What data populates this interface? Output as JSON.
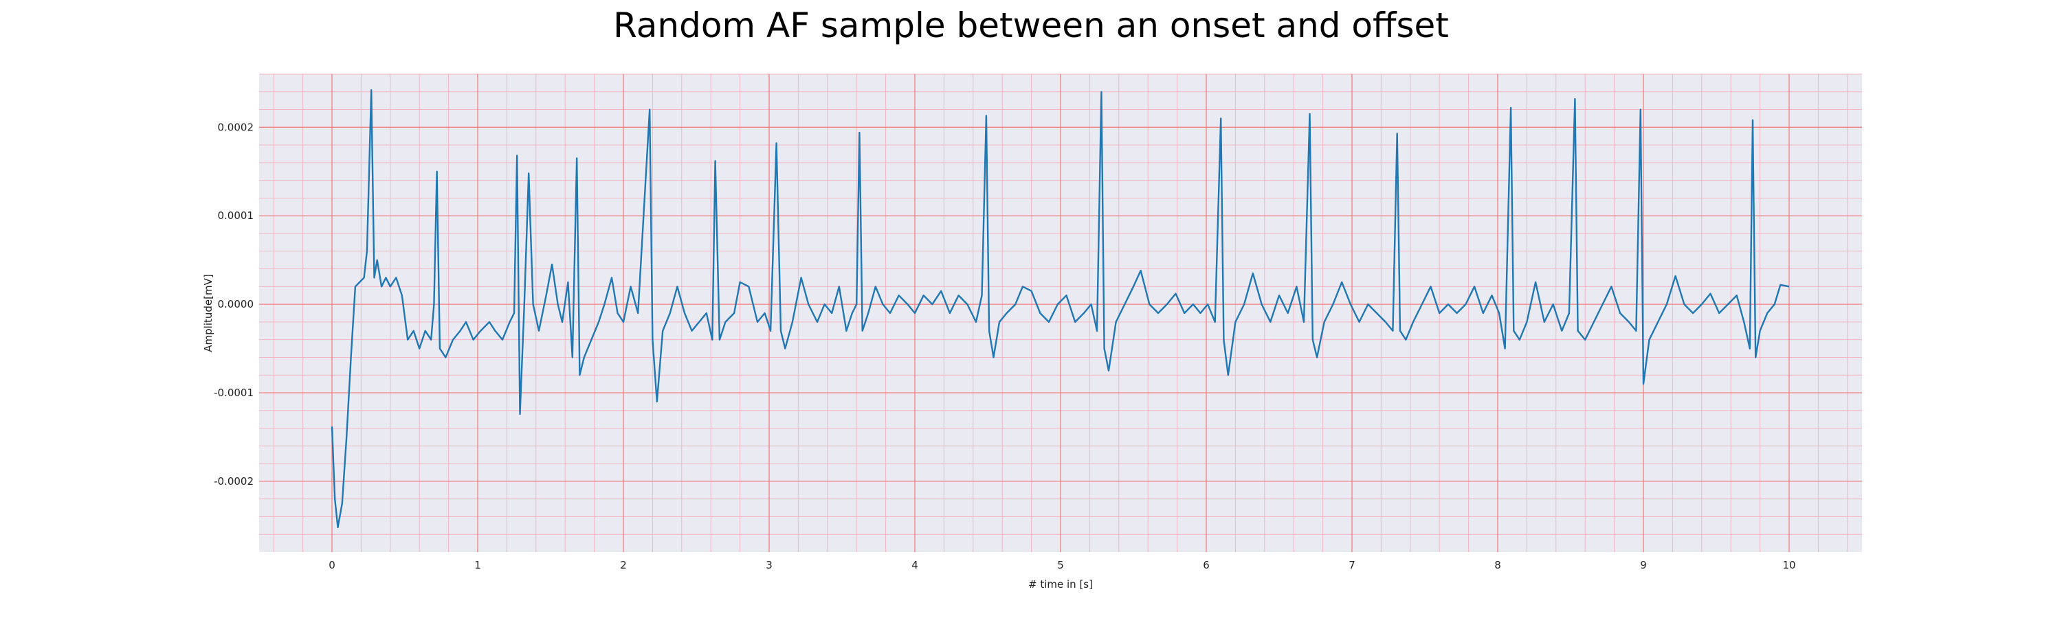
{
  "chart_data": {
    "type": "line",
    "title": "Random AF sample between an onset and offset",
    "xlabel": "# time in [s]",
    "ylabel": "Amplitude[mV]",
    "xlim": [
      -0.5,
      10.5
    ],
    "ylim": [
      -0.00028,
      0.00026
    ],
    "xticks": [
      0,
      1,
      2,
      3,
      4,
      5,
      6,
      7,
      8,
      9,
      10
    ],
    "xtick_labels": [
      "0",
      "1",
      "2",
      "3",
      "4",
      "5",
      "6",
      "7",
      "8",
      "9",
      "10"
    ],
    "yticks": [
      -0.0002,
      -0.0001,
      0.0,
      0.0001,
      0.0002
    ],
    "ytick_labels": [
      "-0.0002",
      "-0.0001",
      "0.0000",
      "0.0001",
      "0.0002"
    ],
    "grid": true,
    "minor_grid": true,
    "colors": {
      "line": "#1f77b4",
      "background": "#eaeaf2",
      "major_grid": "#f08080",
      "minor_grid": "#f4b6c2"
    },
    "series": [
      {
        "points": [
          [
            0.0,
            -0.000138
          ],
          [
            0.02,
            -0.00022
          ],
          [
            0.04,
            -0.000252
          ],
          [
            0.07,
            -0.000225
          ],
          [
            0.1,
            -0.00015
          ],
          [
            0.13,
            -6e-05
          ],
          [
            0.16,
            2e-05
          ],
          [
            0.19,
            2.5e-05
          ],
          [
            0.22,
            3e-05
          ],
          [
            0.24,
            6e-05
          ],
          [
            0.27,
            0.000242
          ],
          [
            0.29,
            3e-05
          ],
          [
            0.31,
            5e-05
          ],
          [
            0.34,
            2e-05
          ],
          [
            0.37,
            3e-05
          ],
          [
            0.4,
            2e-05
          ],
          [
            0.44,
            3e-05
          ],
          [
            0.48,
            1e-05
          ],
          [
            0.52,
            -4e-05
          ],
          [
            0.56,
            -3e-05
          ],
          [
            0.6,
            -5e-05
          ],
          [
            0.64,
            -3e-05
          ],
          [
            0.68,
            -4e-05
          ],
          [
            0.7,
            0.0
          ],
          [
            0.72,
            0.00015
          ],
          [
            0.74,
            -5e-05
          ],
          [
            0.78,
            -6e-05
          ],
          [
            0.83,
            -4e-05
          ],
          [
            0.88,
            -3e-05
          ],
          [
            0.92,
            -2e-05
          ],
          [
            0.97,
            -4e-05
          ],
          [
            1.02,
            -3e-05
          ],
          [
            1.08,
            -2e-05
          ],
          [
            1.12,
            -3e-05
          ],
          [
            1.17,
            -4e-05
          ],
          [
            1.22,
            -2e-05
          ],
          [
            1.25,
            -1e-05
          ],
          [
            1.27,
            0.000168
          ],
          [
            1.29,
            -0.000124
          ],
          [
            1.32,
            0.0
          ],
          [
            1.35,
            0.000148
          ],
          [
            1.38,
            0.0
          ],
          [
            1.42,
            -3e-05
          ],
          [
            1.47,
            1e-05
          ],
          [
            1.51,
            4.5e-05
          ],
          [
            1.55,
            0.0
          ],
          [
            1.58,
            -2e-05
          ],
          [
            1.62,
            2.5e-05
          ],
          [
            1.65,
            -6e-05
          ],
          [
            1.68,
            0.000165
          ],
          [
            1.7,
            -8e-05
          ],
          [
            1.73,
            -6e-05
          ],
          [
            1.78,
            -4e-05
          ],
          [
            1.83,
            -2e-05
          ],
          [
            1.87,
            0.0
          ],
          [
            1.92,
            3e-05
          ],
          [
            1.96,
            -1e-05
          ],
          [
            2.0,
            -2e-05
          ],
          [
            2.05,
            2e-05
          ],
          [
            2.1,
            -1e-05
          ],
          [
            2.18,
            0.00022
          ],
          [
            2.2,
            -4e-05
          ],
          [
            2.23,
            -0.00011
          ],
          [
            2.27,
            -3e-05
          ],
          [
            2.32,
            -1e-05
          ],
          [
            2.37,
            2e-05
          ],
          [
            2.42,
            -1e-05
          ],
          [
            2.47,
            -3e-05
          ],
          [
            2.52,
            -2e-05
          ],
          [
            2.57,
            -1e-05
          ],
          [
            2.61,
            -4e-05
          ],
          [
            2.63,
            0.000162
          ],
          [
            2.66,
            -4e-05
          ],
          [
            2.7,
            -2e-05
          ],
          [
            2.76,
            -1e-05
          ],
          [
            2.8,
            2.5e-05
          ],
          [
            2.86,
            2e-05
          ],
          [
            2.92,
            -2e-05
          ],
          [
            2.97,
            -1e-05
          ],
          [
            3.01,
            -3e-05
          ],
          [
            3.05,
            0.000182
          ],
          [
            3.08,
            -3e-05
          ],
          [
            3.11,
            -5e-05
          ],
          [
            3.16,
            -2e-05
          ],
          [
            3.22,
            3e-05
          ],
          [
            3.27,
            0.0
          ],
          [
            3.33,
            -2e-05
          ],
          [
            3.38,
            0.0
          ],
          [
            3.43,
            -1e-05
          ],
          [
            3.48,
            2e-05
          ],
          [
            3.53,
            -3e-05
          ],
          [
            3.57,
            -1e-05
          ],
          [
            3.6,
            0.0
          ],
          [
            3.62,
            0.000194
          ],
          [
            3.64,
            -3e-05
          ],
          [
            3.68,
            -1e-05
          ],
          [
            3.73,
            2e-05
          ],
          [
            3.78,
            0.0
          ],
          [
            3.83,
            -1e-05
          ],
          [
            3.89,
            1e-05
          ],
          [
            3.95,
            0.0
          ],
          [
            4.0,
            -1e-05
          ],
          [
            4.06,
            1e-05
          ],
          [
            4.12,
            0.0
          ],
          [
            4.18,
            1.5e-05
          ],
          [
            4.24,
            -1e-05
          ],
          [
            4.3,
            1e-05
          ],
          [
            4.36,
            0.0
          ],
          [
            4.42,
            -2e-05
          ],
          [
            4.46,
            1e-05
          ],
          [
            4.49,
            0.000213
          ],
          [
            4.51,
            -3e-05
          ],
          [
            4.54,
            -6e-05
          ],
          [
            4.58,
            -2e-05
          ],
          [
            4.63,
            -1e-05
          ],
          [
            4.69,
            0.0
          ],
          [
            4.74,
            2e-05
          ],
          [
            4.8,
            1.5e-05
          ],
          [
            4.86,
            -1e-05
          ],
          [
            4.92,
            -2e-05
          ],
          [
            4.98,
            0.0
          ],
          [
            5.04,
            1e-05
          ],
          [
            5.1,
            -2e-05
          ],
          [
            5.16,
            -1e-05
          ],
          [
            5.21,
            0.0
          ],
          [
            5.25,
            -3e-05
          ],
          [
            5.28,
            0.00024
          ],
          [
            5.3,
            -5e-05
          ],
          [
            5.33,
            -7.5e-05
          ],
          [
            5.38,
            -2e-05
          ],
          [
            5.44,
            0.0
          ],
          [
            5.5,
            2e-05
          ],
          [
            5.55,
            3.8e-05
          ],
          [
            5.61,
            0.0
          ],
          [
            5.67,
            -1e-05
          ],
          [
            5.73,
            0.0
          ],
          [
            5.79,
            1.2e-05
          ],
          [
            5.85,
            -1e-05
          ],
          [
            5.91,
            0.0
          ],
          [
            5.96,
            -1e-05
          ],
          [
            6.01,
            0.0
          ],
          [
            6.06,
            -2e-05
          ],
          [
            6.1,
            0.00021
          ],
          [
            6.12,
            -4e-05
          ],
          [
            6.15,
            -8e-05
          ],
          [
            6.2,
            -2e-05
          ],
          [
            6.26,
            0.0
          ],
          [
            6.32,
            3.5e-05
          ],
          [
            6.38,
            0.0
          ],
          [
            6.44,
            -2e-05
          ],
          [
            6.5,
            1e-05
          ],
          [
            6.56,
            -1e-05
          ],
          [
            6.62,
            2e-05
          ],
          [
            6.67,
            -2e-05
          ],
          [
            6.71,
            0.000215
          ],
          [
            6.73,
            -4e-05
          ],
          [
            6.76,
            -6e-05
          ],
          [
            6.81,
            -2e-05
          ],
          [
            6.87,
            0.0
          ],
          [
            6.93,
            2.5e-05
          ],
          [
            6.99,
            0.0
          ],
          [
            7.05,
            -2e-05
          ],
          [
            7.11,
            0.0
          ],
          [
            7.17,
            -1e-05
          ],
          [
            7.23,
            -2e-05
          ],
          [
            7.28,
            -3e-05
          ],
          [
            7.31,
            0.000193
          ],
          [
            7.33,
            -3e-05
          ],
          [
            7.37,
            -4e-05
          ],
          [
            7.42,
            -2e-05
          ],
          [
            7.48,
            0.0
          ],
          [
            7.54,
            2e-05
          ],
          [
            7.6,
            -1e-05
          ],
          [
            7.66,
            0.0
          ],
          [
            7.72,
            -1e-05
          ],
          [
            7.78,
            0.0
          ],
          [
            7.84,
            2e-05
          ],
          [
            7.9,
            -1e-05
          ],
          [
            7.96,
            1e-05
          ],
          [
            8.01,
            -1e-05
          ],
          [
            8.05,
            -5e-05
          ],
          [
            8.09,
            0.000222
          ],
          [
            8.11,
            -3e-05
          ],
          [
            8.15,
            -4e-05
          ],
          [
            8.2,
            -2e-05
          ],
          [
            8.26,
            2.5e-05
          ],
          [
            8.32,
            -2e-05
          ],
          [
            8.38,
            0.0
          ],
          [
            8.44,
            -3e-05
          ],
          [
            8.49,
            -1e-05
          ],
          [
            8.53,
            0.000232
          ],
          [
            8.55,
            -3e-05
          ],
          [
            8.6,
            -4e-05
          ],
          [
            8.66,
            -2e-05
          ],
          [
            8.72,
            0.0
          ],
          [
            8.78,
            2e-05
          ],
          [
            8.84,
            -1e-05
          ],
          [
            8.9,
            -2e-05
          ],
          [
            8.95,
            -3e-05
          ],
          [
            8.98,
            0.00022
          ],
          [
            9.0,
            -9e-05
          ],
          [
            9.04,
            -4e-05
          ],
          [
            9.1,
            -2e-05
          ],
          [
            9.16,
            0.0
          ],
          [
            9.22,
            3.2e-05
          ],
          [
            9.28,
            0.0
          ],
          [
            9.34,
            -1e-05
          ],
          [
            9.4,
            0.0
          ],
          [
            9.46,
            1.2e-05
          ],
          [
            9.52,
            -1e-05
          ],
          [
            9.58,
            0.0
          ],
          [
            9.64,
            1e-05
          ],
          [
            9.69,
            -2e-05
          ],
          [
            9.73,
            -5e-05
          ],
          [
            9.75,
            0.000208
          ],
          [
            9.77,
            -6e-05
          ],
          [
            9.8,
            -3e-05
          ],
          [
            9.85,
            -1e-05
          ],
          [
            9.9,
            0.0
          ],
          [
            9.94,
            2.2e-05
          ],
          [
            10.0,
            2e-05
          ]
        ]
      }
    ]
  }
}
